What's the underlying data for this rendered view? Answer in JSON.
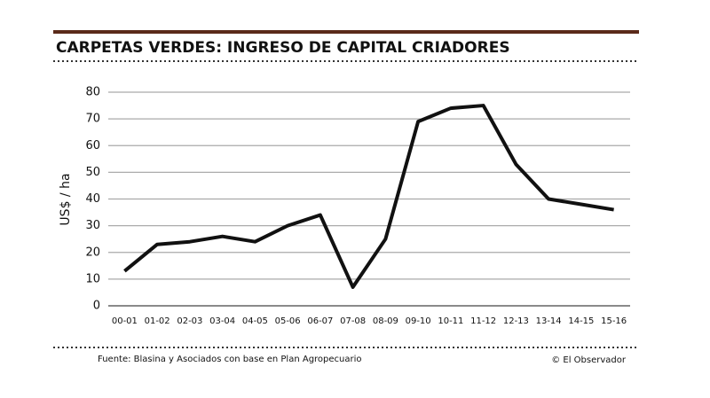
{
  "chart_data": {
    "type": "line",
    "title": "CARPETAS VERDES: INGRESO DE CAPITAL CRIADORES",
    "y_label": "US$ / ha",
    "source": "Fuente: Blasina y Asociados con base en Plan Agropecuario",
    "credit": "© El Observador",
    "categories": [
      "00-01",
      "01-02",
      "02-03",
      "03-04",
      "04-05",
      "05-06",
      "06-07",
      "07-08",
      "08-09",
      "09-10",
      "10-11",
      "11-12",
      "12-13",
      "13-14",
      "14-15",
      "15-16"
    ],
    "series": [
      {
        "name": "Ingreso de capital",
        "color": "#111111",
        "values": [
          13,
          23,
          24,
          26,
          24,
          30,
          34,
          7,
          25,
          69,
          74,
          75,
          53,
          40,
          38,
          36
        ]
      }
    ],
    "ylim": [
      0,
      80
    ],
    "yticks": [
      0,
      10,
      20,
      30,
      40,
      50,
      60,
      70,
      80
    ],
    "grid": true
  }
}
